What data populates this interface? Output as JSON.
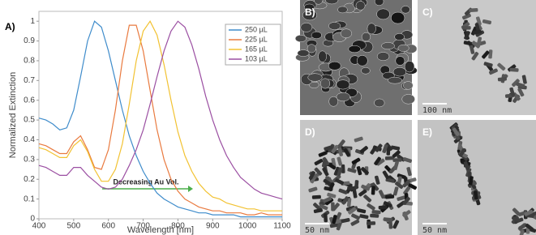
{
  "chart_data": {
    "type": "line",
    "panel_label": "A)",
    "xlabel": "Wavelength [nm]",
    "ylabel": "Normalized Extinction",
    "annotation": "Decreasing Au Vol.",
    "x": [
      400,
      420,
      440,
      460,
      480,
      500,
      520,
      540,
      560,
      580,
      600,
      620,
      640,
      660,
      680,
      700,
      720,
      740,
      760,
      780,
      800,
      820,
      840,
      860,
      880,
      900,
      920,
      940,
      960,
      980,
      1000,
      1020,
      1040,
      1060,
      1080,
      1100
    ],
    "series": [
      {
        "name": "250 µL",
        "color": "#3f8ccb",
        "values": [
          0.51,
          0.5,
          0.48,
          0.45,
          0.46,
          0.55,
          0.72,
          0.9,
          1.0,
          0.97,
          0.85,
          0.7,
          0.55,
          0.42,
          0.32,
          0.24,
          0.18,
          0.13,
          0.1,
          0.08,
          0.06,
          0.05,
          0.04,
          0.03,
          0.03,
          0.02,
          0.02,
          0.02,
          0.02,
          0.01,
          0.01,
          0.01,
          0.01,
          0.01,
          0.01,
          0.01
        ]
      },
      {
        "name": "225 µL",
        "color": "#e97a3f",
        "values": [
          0.38,
          0.37,
          0.35,
          0.33,
          0.33,
          0.39,
          0.42,
          0.35,
          0.26,
          0.25,
          0.35,
          0.55,
          0.8,
          0.98,
          0.98,
          0.85,
          0.65,
          0.45,
          0.3,
          0.2,
          0.14,
          0.1,
          0.08,
          0.06,
          0.05,
          0.04,
          0.04,
          0.03,
          0.03,
          0.03,
          0.02,
          0.02,
          0.03,
          0.02,
          0.02,
          0.02
        ]
      },
      {
        "name": "165 µL",
        "color": "#f2c232",
        "values": [
          0.36,
          0.35,
          0.33,
          0.31,
          0.31,
          0.37,
          0.4,
          0.34,
          0.25,
          0.19,
          0.19,
          0.25,
          0.38,
          0.58,
          0.8,
          0.95,
          1.0,
          0.93,
          0.78,
          0.6,
          0.44,
          0.32,
          0.24,
          0.18,
          0.14,
          0.11,
          0.1,
          0.08,
          0.07,
          0.06,
          0.05,
          0.05,
          0.04,
          0.04,
          0.04,
          0.04
        ]
      },
      {
        "name": "103 µL",
        "color": "#9b4fa2",
        "values": [
          0.27,
          0.26,
          0.24,
          0.22,
          0.22,
          0.26,
          0.26,
          0.22,
          0.19,
          0.16,
          0.15,
          0.16,
          0.2,
          0.27,
          0.35,
          0.45,
          0.58,
          0.72,
          0.85,
          0.95,
          1.0,
          0.97,
          0.88,
          0.76,
          0.62,
          0.5,
          0.4,
          0.32,
          0.26,
          0.21,
          0.18,
          0.15,
          0.13,
          0.12,
          0.11,
          0.1
        ]
      }
    ],
    "xlim": [
      400,
      1100
    ],
    "xticks": [
      400,
      500,
      600,
      700,
      800,
      900,
      1000,
      1100
    ],
    "ylim": [
      0,
      1.05
    ],
    "yticks": [
      0,
      0.1,
      0.2,
      0.3,
      0.4,
      0.5,
      0.6,
      0.7,
      0.8,
      0.9,
      1
    ],
    "legend": "upper right"
  },
  "images": [
    {
      "label": "B)"
    },
    {
      "label": "C)",
      "scale": "100 nm"
    },
    {
      "label": "D)",
      "scale": "50 nm"
    },
    {
      "label": "E)",
      "scale": "50 nm"
    }
  ]
}
